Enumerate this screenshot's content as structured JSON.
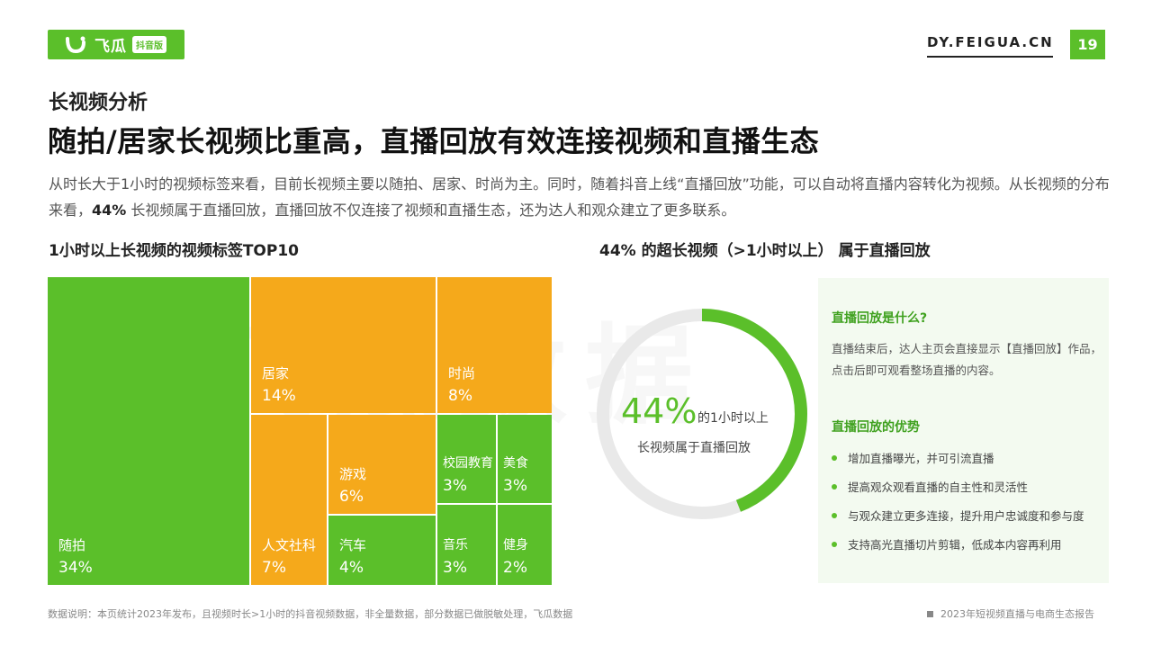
{
  "header": {
    "logo_text": "飞瓜",
    "logo_badge": "抖音版",
    "site": "DY.FEIGUA.CN",
    "page_number": "19",
    "brand_color": "#5bbf2a",
    "accent_color": "#f5a91b"
  },
  "section_title": "长视频分析",
  "headline": "随拍/居家长视频比重高，直播回放有效连接视频和直播生态",
  "description": {
    "part1": "从时长大于1小时的视频标签来看，目前长视频主要以随拍、居家、时尚为主。同时，随着抖音上线“直播回放”功能，可以自动将直播内容转化为视频。从长视频的分布来看，",
    "bold": "44%",
    "part2": " 长视频属于直播回放，直播回放不仅连接了视频和直播生态，还为达人和观众建立了更多联系。"
  },
  "chart_data": [
    {
      "type": "treemap",
      "title": "1小时以上长视频的视频标签TOP10",
      "unit": "%",
      "items": [
        {
          "label": "随拍",
          "value": 34,
          "display": "34%",
          "color": "#5bbf2a"
        },
        {
          "label": "居家",
          "value": 14,
          "display": "14%",
          "color": "#f5a91b"
        },
        {
          "label": "时尚",
          "value": 8,
          "display": "8%",
          "color": "#f5a91b"
        },
        {
          "label": "人文社科",
          "value": 7,
          "display": "7%",
          "color": "#f5a91b"
        },
        {
          "label": "游戏",
          "value": 6,
          "display": "6%",
          "color": "#f5a91b"
        },
        {
          "label": "汽车",
          "value": 4,
          "display": "4%",
          "color": "#5bbf2a"
        },
        {
          "label": "校园教育",
          "value": 3,
          "display": "3%",
          "color": "#5bbf2a"
        },
        {
          "label": "美食",
          "value": 3,
          "display": "3%",
          "color": "#5bbf2a"
        },
        {
          "label": "音乐",
          "value": 3,
          "display": "3%",
          "color": "#5bbf2a"
        },
        {
          "label": "健身",
          "value": 2,
          "display": "2%",
          "color": "#5bbf2a"
        }
      ]
    },
    {
      "type": "pie",
      "title": "44% 的超长视频（>1小时以上） 属于直播回放",
      "values": [
        44,
        56
      ],
      "center_value": "44%",
      "center_text1": "的1小时以上",
      "center_text2": "长视频属于直播回放",
      "colors": [
        "#5bbf2a",
        "#e9e9e9"
      ]
    }
  ],
  "panel": {
    "heading1": "直播回放是什么?",
    "text1": "直播结束后，达人主页会直接显示【直播回放】作品，点击后即可观看整场直播的内容。",
    "heading2": "直播回放的优势",
    "bullets": [
      "增加直播曝光，并可引流直播",
      "提高观众观看直播的自主性和灵活性",
      "与观众建立更多连接，提升用户忠诚度和参与度",
      "支持高光直播切片剪辑，低成本内容再利用"
    ]
  },
  "footer": {
    "note": "数据说明：本页统计2023年发布，且视频时长>1小时的抖音视频数据，非全量数据，部分数据已做脱敏处理，飞瓜数据",
    "report": "2023年短视频直播与电商生态报告"
  },
  "watermark": "飞瓜数据"
}
